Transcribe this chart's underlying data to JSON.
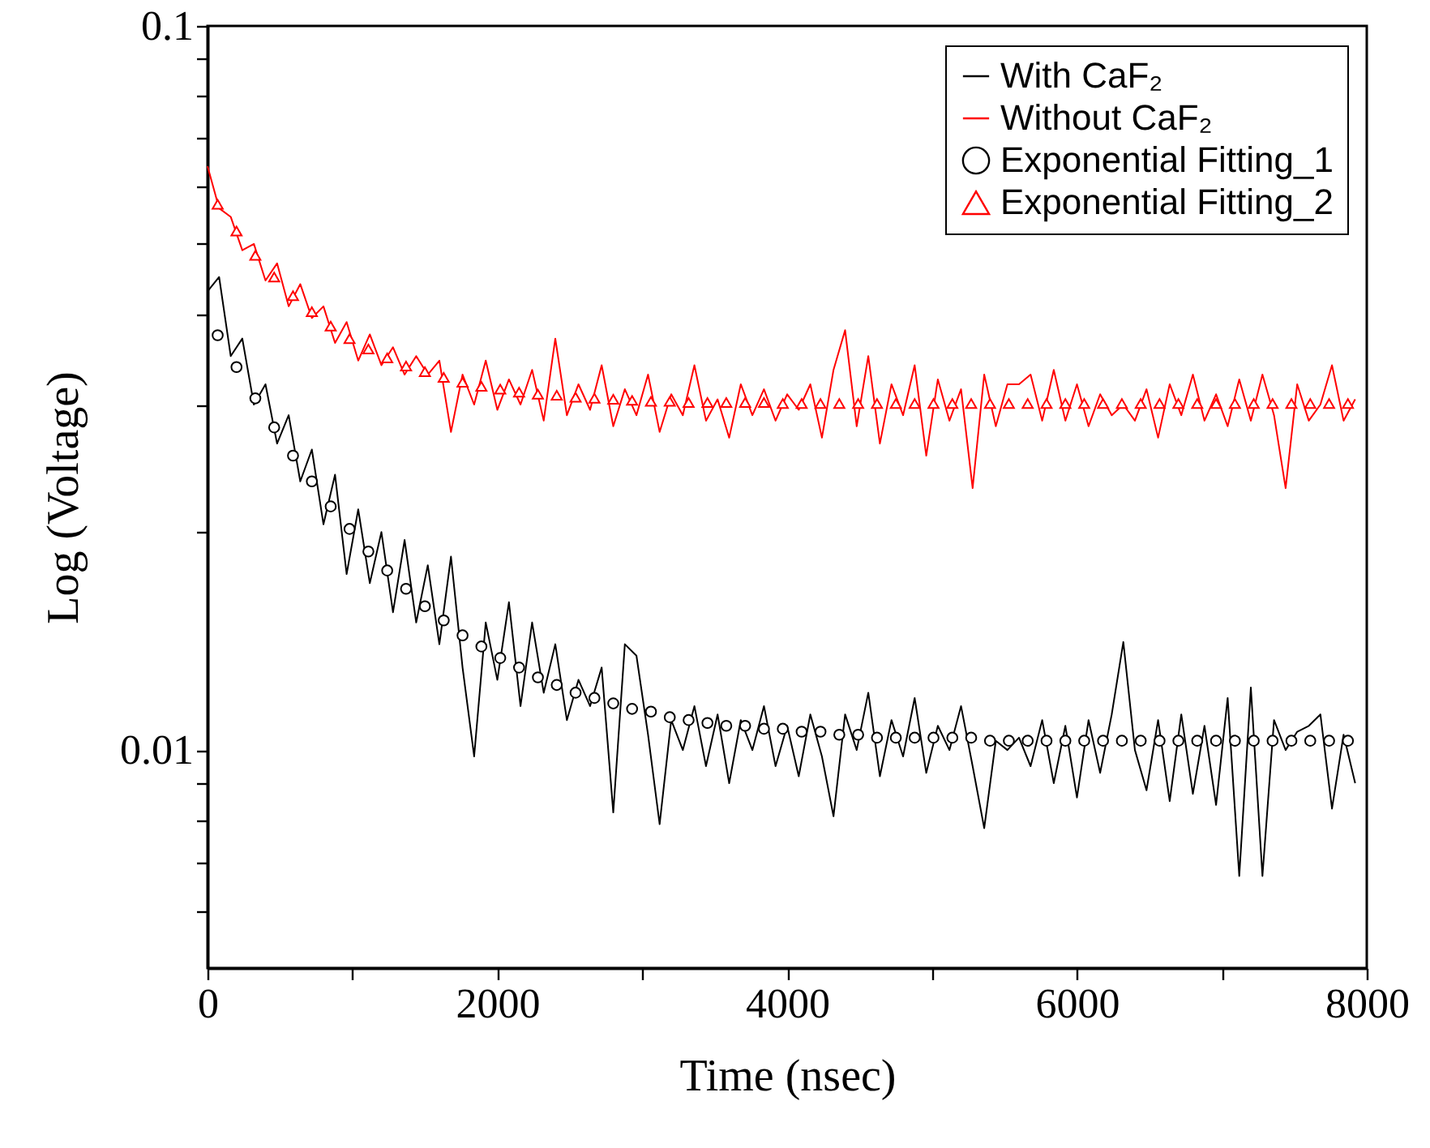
{
  "chart_data": {
    "type": "line",
    "xlabel": "Time (nsec)",
    "ylabel": "Log (Voltage)",
    "log": "y",
    "grid": false,
    "legend": "top right",
    "xlim": [
      0,
      8000
    ],
    "xticks": [
      0,
      {
        "value": 1000,
        "label": null
      },
      2000,
      {
        "value": 3000,
        "label": null
      },
      4000,
      {
        "value": 5000,
        "label": null
      },
      6000,
      {
        "value": 7000,
        "label": null
      },
      8000
    ],
    "ylim": [
      0.005,
      0.1
    ],
    "yticks": [
      {
        "value": 0.006,
        "label": null
      },
      {
        "value": 0.007,
        "label": null
      },
      {
        "value": 0.008,
        "label": null
      },
      {
        "value": 0.009,
        "label": null
      },
      0.01,
      {
        "value": 0.02,
        "label": null
      },
      {
        "value": 0.03,
        "label": null
      },
      {
        "value": 0.04,
        "label": null
      },
      {
        "value": 0.05,
        "label": null
      },
      {
        "value": 0.06,
        "label": null
      },
      {
        "value": 0.07,
        "label": null
      },
      {
        "value": 0.08,
        "label": null
      },
      {
        "value": 0.09,
        "label": null
      },
      0.1
    ],
    "series": [
      {
        "name": "With CaF₂",
        "marker": "none",
        "color": "#000000",
        "x": [
          0,
          80,
          160,
          240,
          320,
          400,
          480,
          560,
          640,
          720,
          800,
          880,
          960,
          1040,
          1120,
          1200,
          1280,
          1360,
          1440,
          1520,
          1600,
          1680,
          1760,
          1840,
          1920,
          2000,
          2080,
          2160,
          2240,
          2320,
          2400,
          2480,
          2560,
          2640,
          2720,
          2800,
          2880,
          2960,
          3040,
          3120,
          3200,
          3280,
          3360,
          3440,
          3520,
          3600,
          3680,
          3760,
          3840,
          3920,
          4000,
          4080,
          4160,
          4240,
          4320,
          4400,
          4480,
          4560,
          4640,
          4720,
          4800,
          4880,
          4960,
          5040,
          5120,
          5200,
          5280,
          5360,
          5440,
          5520,
          5600,
          5680,
          5760,
          5840,
          5920,
          6000,
          6080,
          6160,
          6240,
          6320,
          6400,
          6480,
          6560,
          6640,
          6720,
          6800,
          6880,
          6960,
          7040,
          7120,
          7200,
          7280,
          7360,
          7440,
          7520,
          7600,
          7680,
          7760,
          7840,
          7920
        ],
        "values": [
          0.043,
          0.045,
          0.035,
          0.037,
          0.03,
          0.032,
          0.0265,
          0.029,
          0.0235,
          0.026,
          0.0205,
          0.024,
          0.0175,
          0.0215,
          0.017,
          0.02,
          0.0155,
          0.0195,
          0.015,
          0.018,
          0.014,
          0.0185,
          0.013,
          0.0098,
          0.015,
          0.0125,
          0.016,
          0.0115,
          0.015,
          0.012,
          0.014,
          0.011,
          0.0125,
          0.0115,
          0.013,
          0.0082,
          0.014,
          0.0135,
          0.0105,
          0.0079,
          0.011,
          0.01,
          0.0115,
          0.0095,
          0.0112,
          0.009,
          0.011,
          0.01,
          0.0115,
          0.0095,
          0.0108,
          0.0092,
          0.0112,
          0.0098,
          0.0081,
          0.0112,
          0.01,
          0.012,
          0.0092,
          0.011,
          0.0098,
          0.0118,
          0.0093,
          0.0108,
          0.01,
          0.0115,
          0.0095,
          0.0078,
          0.0103,
          0.01,
          0.0104,
          0.0095,
          0.011,
          0.009,
          0.0108,
          0.0086,
          0.011,
          0.0093,
          0.0112,
          0.0141,
          0.01,
          0.0088,
          0.011,
          0.0085,
          0.0112,
          0.0087,
          0.0108,
          0.0084,
          0.0118,
          0.0067,
          0.0122,
          0.0067,
          0.011,
          0.01,
          0.0106,
          0.0108,
          0.0112,
          0.0083,
          0.0105,
          0.009
        ]
      },
      {
        "name": "Without CaF₂",
        "marker": "none",
        "color": "#ff0000",
        "x": [
          0,
          80,
          160,
          240,
          320,
          400,
          480,
          560,
          640,
          720,
          800,
          880,
          960,
          1040,
          1120,
          1200,
          1280,
          1360,
          1440,
          1520,
          1600,
          1680,
          1760,
          1840,
          1920,
          2000,
          2080,
          2160,
          2240,
          2320,
          2400,
          2480,
          2560,
          2640,
          2720,
          2800,
          2880,
          2960,
          3040,
          3120,
          3200,
          3280,
          3360,
          3440,
          3520,
          3600,
          3680,
          3760,
          3840,
          3920,
          4000,
          4080,
          4160,
          4240,
          4320,
          4400,
          4480,
          4560,
          4640,
          4720,
          4800,
          4880,
          4960,
          5040,
          5120,
          5200,
          5280,
          5360,
          5440,
          5520,
          5600,
          5680,
          5760,
          5840,
          5920,
          6000,
          6080,
          6160,
          6240,
          6320,
          6400,
          6480,
          6560,
          6640,
          6720,
          6800,
          6880,
          6960,
          7040,
          7120,
          7200,
          7280,
          7360,
          7440,
          7520,
          7600,
          7680,
          7760,
          7840,
          7920
        ],
        "values": [
          0.064,
          0.056,
          0.0545,
          0.049,
          0.05,
          0.0445,
          0.047,
          0.041,
          0.044,
          0.0395,
          0.041,
          0.0365,
          0.039,
          0.0345,
          0.0375,
          0.034,
          0.036,
          0.033,
          0.035,
          0.033,
          0.0345,
          0.0275,
          0.033,
          0.03,
          0.0345,
          0.0295,
          0.0325,
          0.03,
          0.0335,
          0.0285,
          0.037,
          0.029,
          0.032,
          0.0295,
          0.034,
          0.028,
          0.0315,
          0.029,
          0.033,
          0.0275,
          0.031,
          0.029,
          0.034,
          0.0285,
          0.0305,
          0.027,
          0.032,
          0.029,
          0.0315,
          0.0285,
          0.031,
          0.0295,
          0.032,
          0.027,
          0.0335,
          0.038,
          0.028,
          0.035,
          0.0265,
          0.032,
          0.029,
          0.034,
          0.0255,
          0.0325,
          0.0285,
          0.0315,
          0.023,
          0.033,
          0.028,
          0.032,
          0.032,
          0.033,
          0.0285,
          0.0335,
          0.0285,
          0.032,
          0.028,
          0.031,
          0.029,
          0.03,
          0.0285,
          0.0315,
          0.027,
          0.032,
          0.029,
          0.033,
          0.0285,
          0.031,
          0.028,
          0.0325,
          0.0285,
          0.033,
          0.029,
          0.023,
          0.032,
          0.0285,
          0.03,
          0.034,
          0.0285,
          0.0305
        ]
      },
      {
        "name": "Exponential Fitting_1",
        "type": "scatter",
        "marker": "circle",
        "color": "#000000",
        "x": [
          70,
          200,
          330,
          460,
          590,
          720,
          850,
          980,
          1110,
          1240,
          1370,
          1500,
          1630,
          1760,
          1890,
          2020,
          2150,
          2280,
          2410,
          2540,
          2670,
          2800,
          2930,
          3060,
          3190,
          3320,
          3450,
          3580,
          3710,
          3840,
          3970,
          4100,
          4230,
          4360,
          4490,
          4620,
          4750,
          4880,
          5010,
          5140,
          5270,
          5400,
          5530,
          5660,
          5790,
          5920,
          6050,
          6180,
          6310,
          6440,
          6570,
          6700,
          6830,
          6960,
          7090,
          7220,
          7350,
          7480,
          7610,
          7740,
          7870
        ],
        "values": [
          0.0374,
          0.0338,
          0.0306,
          0.0279,
          0.0255,
          0.0235,
          0.0217,
          0.0202,
          0.0188,
          0.0177,
          0.0167,
          0.0158,
          0.0151,
          0.0144,
          0.0139,
          0.0134,
          0.013,
          0.0126,
          0.0123,
          0.012,
          0.0118,
          0.0116,
          0.0114,
          0.0113,
          0.0111,
          0.011,
          0.0109,
          0.0108,
          0.0108,
          0.0107,
          0.0107,
          0.0106,
          0.0106,
          0.0105,
          0.0105,
          0.0104,
          0.0104,
          0.0104,
          0.0104,
          0.0104,
          0.0104,
          0.0103,
          0.0103,
          0.0103,
          0.0103,
          0.0103,
          0.0103,
          0.0103,
          0.0103,
          0.0103,
          0.0103,
          0.0103,
          0.0103,
          0.0103,
          0.0103,
          0.0103,
          0.0103,
          0.0103,
          0.0103,
          0.0103,
          0.0103
        ]
      },
      {
        "name": "Exponential Fitting_2",
        "type": "scatter",
        "marker": "triangle",
        "color": "#ff0000",
        "x": [
          70,
          200,
          330,
          460,
          590,
          720,
          850,
          980,
          1110,
          1240,
          1370,
          1500,
          1630,
          1760,
          1890,
          2020,
          2150,
          2280,
          2410,
          2540,
          2670,
          2800,
          2930,
          3060,
          3190,
          3320,
          3450,
          3580,
          3710,
          3840,
          3970,
          4100,
          4230,
          4360,
          4490,
          4620,
          4750,
          4880,
          5010,
          5140,
          5270,
          5400,
          5530,
          5660,
          5790,
          5920,
          6050,
          6180,
          6310,
          6440,
          6570,
          6700,
          6830,
          6960,
          7090,
          7220,
          7350,
          7480,
          7610,
          7740,
          7870
        ],
        "values": [
          0.0567,
          0.0521,
          0.0482,
          0.045,
          0.0424,
          0.0403,
          0.0385,
          0.037,
          0.0358,
          0.0348,
          0.0339,
          0.0333,
          0.0327,
          0.0322,
          0.0318,
          0.0315,
          0.0312,
          0.031,
          0.0309,
          0.0307,
          0.0306,
          0.0305,
          0.0304,
          0.0303,
          0.0303,
          0.0302,
          0.0302,
          0.0302,
          0.0302,
          0.0302,
          0.0301,
          0.0301,
          0.0301,
          0.0301,
          0.0301,
          0.0301,
          0.0301,
          0.0301,
          0.0301,
          0.0301,
          0.0301,
          0.0301,
          0.0301,
          0.0301,
          0.0301,
          0.0301,
          0.0301,
          0.0301,
          0.0301,
          0.0301,
          0.0301,
          0.0301,
          0.0301,
          0.0301,
          0.0301,
          0.0301,
          0.0301,
          0.0301,
          0.0301,
          0.0301,
          0.0301
        ]
      }
    ]
  }
}
